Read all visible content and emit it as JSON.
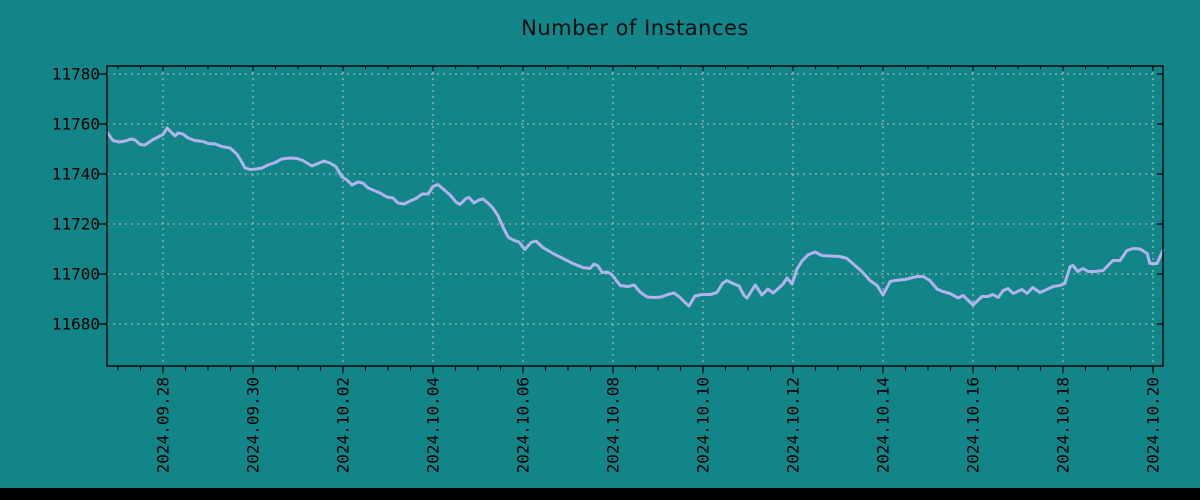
{
  "window": {
    "background_color": "#128589",
    "bottom_bar_color": "#000000"
  },
  "chart": {
    "title": "Number of Instances",
    "line_color": "#b2b3ec",
    "grid_color": "#c6c0c0",
    "axis_color": "#000000",
    "tick_text_color": "#000000",
    "title_color": "#0d0d0d"
  },
  "chart_data": {
    "type": "line",
    "title": "Number of Instances",
    "xlabel": "",
    "ylabel": "",
    "grid": true,
    "legend": false,
    "x_unit": "days since 2024-09-28 00:00",
    "x_range": [
      -1.244,
      22.222
    ],
    "y_range": [
      11663.2,
      11783.2
    ],
    "y_ticks": [
      11680,
      11700,
      11720,
      11740,
      11760,
      11780
    ],
    "y_tick_labels": [
      "11680",
      "11700",
      "11720",
      "11740",
      "11760",
      "11780"
    ],
    "x_major_tick_days": [
      0,
      2,
      4,
      6,
      8,
      10,
      12,
      14,
      16,
      18,
      20,
      22
    ],
    "x_major_tick_labels": [
      "2024.09.28",
      "2024.09.30",
      "2024.10.02",
      "2024.10.04",
      "2024.10.06",
      "2024.10.08",
      "2024.10.10",
      "2024.10.12",
      "2024.10.14",
      "2024.10.16",
      "2024.10.18",
      "2024.10.20"
    ],
    "x_minor_tick_step_days": 0.5,
    "series": [
      {
        "name": "instances",
        "points": [
          [
            -1.24,
            11756.6
          ],
          [
            -1.16,
            11754.6
          ],
          [
            -1.11,
            11753.4
          ],
          [
            -0.96,
            11752.8
          ],
          [
            -0.84,
            11753.2
          ],
          [
            -0.71,
            11754.0
          ],
          [
            -0.62,
            11753.6
          ],
          [
            -0.51,
            11751.8
          ],
          [
            -0.4,
            11751.6
          ],
          [
            -0.24,
            11753.6
          ],
          [
            -0.11,
            11754.8
          ],
          [
            0.0,
            11755.8
          ],
          [
            0.09,
            11758.4
          ],
          [
            0.2,
            11756.4
          ],
          [
            0.27,
            11755.2
          ],
          [
            0.33,
            11756.4
          ],
          [
            0.44,
            11756.0
          ],
          [
            0.56,
            11754.4
          ],
          [
            0.71,
            11753.4
          ],
          [
            0.89,
            11753.0
          ],
          [
            1.0,
            11752.2
          ],
          [
            1.16,
            11752.0
          ],
          [
            1.31,
            11751.0
          ],
          [
            1.49,
            11750.4
          ],
          [
            1.64,
            11748.0
          ],
          [
            1.73,
            11745.5
          ],
          [
            1.82,
            11742.5
          ],
          [
            1.93,
            11741.8
          ],
          [
            2.07,
            11742.0
          ],
          [
            2.2,
            11742.4
          ],
          [
            2.33,
            11743.6
          ],
          [
            2.49,
            11744.6
          ],
          [
            2.64,
            11746.0
          ],
          [
            2.82,
            11746.4
          ],
          [
            2.98,
            11746.2
          ],
          [
            3.11,
            11745.4
          ],
          [
            3.31,
            11743.2
          ],
          [
            3.44,
            11744.2
          ],
          [
            3.58,
            11745.2
          ],
          [
            3.71,
            11744.4
          ],
          [
            3.84,
            11743.0
          ],
          [
            3.98,
            11738.8
          ],
          [
            4.09,
            11737.6
          ],
          [
            4.2,
            11735.6
          ],
          [
            4.33,
            11736.8
          ],
          [
            4.44,
            11736.4
          ],
          [
            4.56,
            11734.4
          ],
          [
            4.69,
            11733.4
          ],
          [
            4.82,
            11732.4
          ],
          [
            4.98,
            11730.8
          ],
          [
            5.11,
            11730.4
          ],
          [
            5.22,
            11728.4
          ],
          [
            5.36,
            11728.0
          ],
          [
            5.49,
            11729.2
          ],
          [
            5.62,
            11730.2
          ],
          [
            5.76,
            11732.0
          ],
          [
            5.89,
            11732.0
          ],
          [
            6.0,
            11735.0
          ],
          [
            6.11,
            11735.8
          ],
          [
            6.24,
            11733.8
          ],
          [
            6.38,
            11731.6
          ],
          [
            6.51,
            11728.8
          ],
          [
            6.6,
            11727.8
          ],
          [
            6.73,
            11730.2
          ],
          [
            6.8,
            11730.6
          ],
          [
            6.91,
            11728.4
          ],
          [
            7.02,
            11729.6
          ],
          [
            7.11,
            11730.0
          ],
          [
            7.22,
            11728.4
          ],
          [
            7.33,
            11726.4
          ],
          [
            7.44,
            11723.4
          ],
          [
            7.56,
            11718.6
          ],
          [
            7.67,
            11714.8
          ],
          [
            7.78,
            11713.6
          ],
          [
            7.91,
            11712.8
          ],
          [
            8.04,
            11709.8
          ],
          [
            8.18,
            11712.6
          ],
          [
            8.29,
            11713.2
          ],
          [
            8.44,
            11710.6
          ],
          [
            8.67,
            11708.2
          ],
          [
            8.89,
            11706.2
          ],
          [
            9.11,
            11704.2
          ],
          [
            9.33,
            11702.6
          ],
          [
            9.49,
            11702.2
          ],
          [
            9.58,
            11704.0
          ],
          [
            9.67,
            11703.2
          ],
          [
            9.76,
            11700.6
          ],
          [
            9.87,
            11700.8
          ],
          [
            9.96,
            11700.0
          ],
          [
            10.04,
            11698.2
          ],
          [
            10.16,
            11695.4
          ],
          [
            10.33,
            11695.0
          ],
          [
            10.47,
            11695.6
          ],
          [
            10.6,
            11692.8
          ],
          [
            10.76,
            11690.8
          ],
          [
            10.93,
            11690.6
          ],
          [
            11.07,
            11690.8
          ],
          [
            11.22,
            11691.8
          ],
          [
            11.36,
            11692.4
          ],
          [
            11.49,
            11690.6
          ],
          [
            11.6,
            11688.6
          ],
          [
            11.69,
            11687.2
          ],
          [
            11.82,
            11691.2
          ],
          [
            11.98,
            11691.8
          ],
          [
            12.16,
            11691.8
          ],
          [
            12.31,
            11692.6
          ],
          [
            12.44,
            11696.4
          ],
          [
            12.53,
            11697.4
          ],
          [
            12.67,
            11696.2
          ],
          [
            12.8,
            11695.2
          ],
          [
            12.91,
            11691.4
          ],
          [
            12.98,
            11690.4
          ],
          [
            13.16,
            11695.6
          ],
          [
            13.31,
            11691.6
          ],
          [
            13.44,
            11694.0
          ],
          [
            13.56,
            11692.4
          ],
          [
            13.78,
            11696.0
          ],
          [
            13.87,
            11698.4
          ],
          [
            13.98,
            11696.0
          ],
          [
            14.09,
            11702.0
          ],
          [
            14.2,
            11705.2
          ],
          [
            14.33,
            11707.6
          ],
          [
            14.49,
            11708.8
          ],
          [
            14.64,
            11707.4
          ],
          [
            14.82,
            11707.2
          ],
          [
            15.04,
            11707.0
          ],
          [
            15.2,
            11706.2
          ],
          [
            15.38,
            11703.4
          ],
          [
            15.53,
            11701.0
          ],
          [
            15.71,
            11697.4
          ],
          [
            15.87,
            11695.4
          ],
          [
            16.0,
            11691.6
          ],
          [
            16.16,
            11697.0
          ],
          [
            16.27,
            11697.4
          ],
          [
            16.49,
            11697.8
          ],
          [
            16.76,
            11699.0
          ],
          [
            16.89,
            11699.0
          ],
          [
            17.04,
            11697.4
          ],
          [
            17.2,
            11694.0
          ],
          [
            17.33,
            11693.0
          ],
          [
            17.49,
            11692.2
          ],
          [
            17.67,
            11690.4
          ],
          [
            17.78,
            11691.4
          ],
          [
            18.0,
            11687.6
          ],
          [
            18.2,
            11691.0
          ],
          [
            18.33,
            11691.0
          ],
          [
            18.44,
            11691.8
          ],
          [
            18.56,
            11690.6
          ],
          [
            18.67,
            11693.4
          ],
          [
            18.78,
            11694.2
          ],
          [
            18.89,
            11692.2
          ],
          [
            19.09,
            11693.8
          ],
          [
            19.2,
            11692.2
          ],
          [
            19.33,
            11694.6
          ],
          [
            19.49,
            11692.6
          ],
          [
            19.64,
            11693.8
          ],
          [
            19.78,
            11695.0
          ],
          [
            19.93,
            11695.4
          ],
          [
            20.04,
            11696.2
          ],
          [
            20.16,
            11703.0
          ],
          [
            20.22,
            11703.4
          ],
          [
            20.33,
            11701.0
          ],
          [
            20.44,
            11702.2
          ],
          [
            20.56,
            11701.0
          ],
          [
            20.71,
            11701.0
          ],
          [
            20.89,
            11701.4
          ],
          [
            21.11,
            11705.4
          ],
          [
            21.27,
            11705.4
          ],
          [
            21.42,
            11709.4
          ],
          [
            21.56,
            11710.2
          ],
          [
            21.71,
            11710.0
          ],
          [
            21.87,
            11708.2
          ],
          [
            21.93,
            11704.2
          ],
          [
            22.09,
            11704.2
          ],
          [
            22.22,
            11709.4
          ]
        ]
      }
    ]
  }
}
